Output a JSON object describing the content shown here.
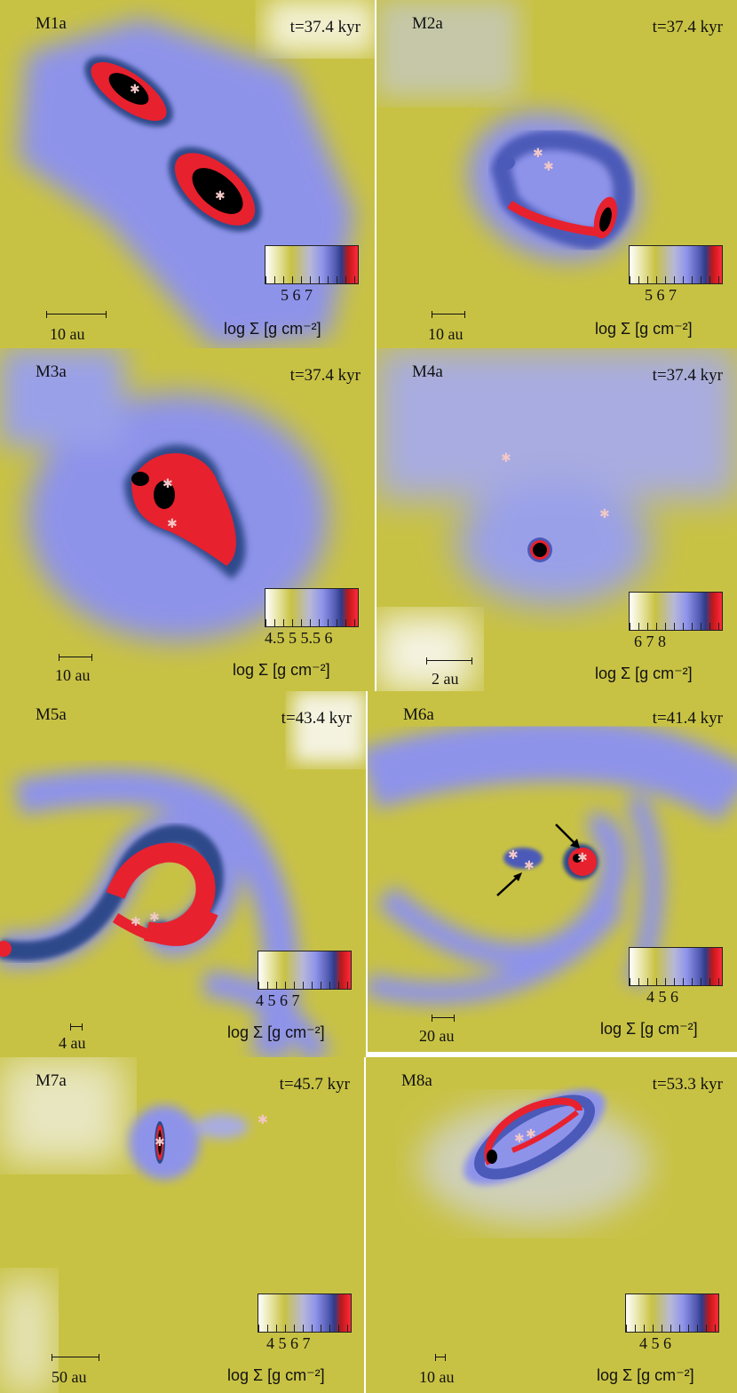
{
  "colorbar_gradient": [
    "#ffffff",
    "#c8c244",
    "#8e93ea",
    "#2d3c8a",
    "#ff2a3c"
  ],
  "panels": [
    {
      "name": "M1a",
      "time": "t=37.4 kyr",
      "cbar_ticks": "5   6   7",
      "cbar_title": "log Σ [g cm⁻²]",
      "scale": "10 au"
    },
    {
      "name": "M2a",
      "time": "t=37.4 kyr",
      "cbar_ticks": "5   6   7",
      "cbar_title": "log Σ [g cm⁻²]",
      "scale": "10 au"
    },
    {
      "name": "M3a",
      "time": "t=37.4 kyr",
      "cbar_ticks": "4.5 5 5.5 6",
      "cbar_title": "log Σ [g cm⁻²]",
      "scale": "10 au"
    },
    {
      "name": "M4a",
      "time": "t=37.4 kyr",
      "cbar_ticks": "6    7    8",
      "cbar_title": "log Σ [g cm⁻²]",
      "scale": "2 au"
    },
    {
      "name": "M5a",
      "time": "t=43.4 kyr",
      "cbar_ticks": "4   5   6   7",
      "cbar_title": "log Σ [g cm⁻²]",
      "scale": "4 au"
    },
    {
      "name": "M6a",
      "time": "t=41.4 kyr",
      "cbar_ticks": "4   5   6",
      "cbar_title": "log Σ [g cm⁻²]",
      "scale": "20 au"
    },
    {
      "name": "M7a",
      "time": "t=45.7 kyr",
      "cbar_ticks": "4   5   6   7",
      "cbar_title": "log Σ [g cm⁻²]",
      "scale": "50 au"
    },
    {
      "name": "M8a",
      "time": "t=53.3 kyr",
      "cbar_ticks": "4   5   6",
      "cbar_title": "log Σ [g cm⁻²]",
      "scale": "10 au"
    }
  ],
  "icons": {
    "star": "star-icon",
    "arrow": "arrow-icon"
  }
}
